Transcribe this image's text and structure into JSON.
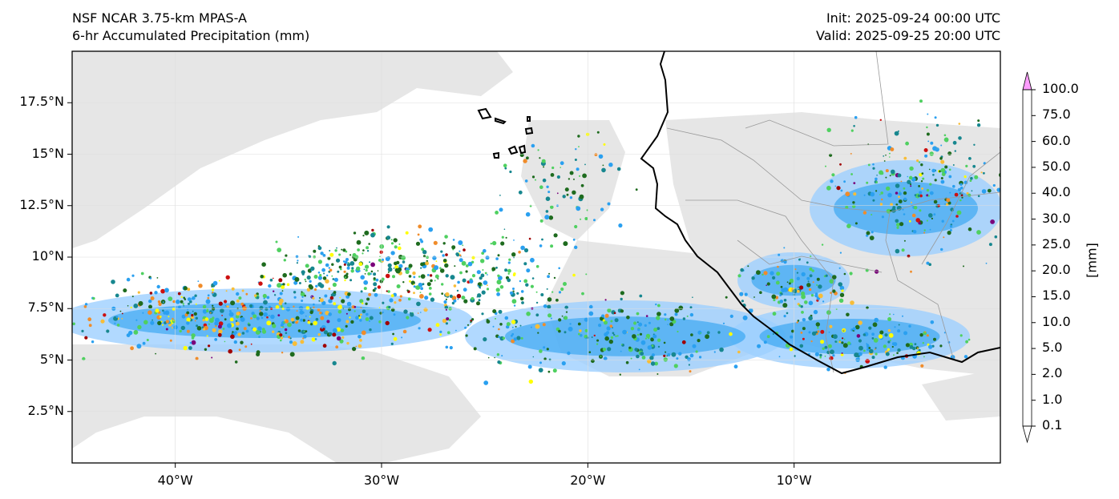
{
  "header": {
    "model": "NSF NCAR 3.75-km MPAS-A",
    "field": "6-hr Accumulated Precipitation (mm)",
    "init": "Init: 2025-09-24 00:00 UTC",
    "valid": "Valid: 2025-09-25 20:00 UTC"
  },
  "map": {
    "lon_range": [
      -45,
      0
    ],
    "lat_range": [
      0,
      20
    ],
    "lat_ticks": [
      {
        "value": 17.5,
        "label": "17.5°N"
      },
      {
        "value": 15,
        "label": "15°N"
      },
      {
        "value": 12.5,
        "label": "12.5°N"
      },
      {
        "value": 10,
        "label": "10°N"
      },
      {
        "value": 7.5,
        "label": "7.5°N"
      },
      {
        "value": 5,
        "label": "5°N"
      },
      {
        "value": 2.5,
        "label": "2.5°N"
      }
    ],
    "lon_ticks": [
      {
        "value": -40,
        "label": "40°W"
      },
      {
        "value": -30,
        "label": "30°W"
      },
      {
        "value": -20,
        "label": "20°W"
      },
      {
        "value": -10,
        "label": "10°W"
      }
    ],
    "background_color": "#ffffff",
    "cloud_color": "#e6e6e6",
    "coast_color": "#000000",
    "border_color": "#999999"
  },
  "colorbar": {
    "unit": "[mm]",
    "levels": [
      "0.1",
      "1.0",
      "2.0",
      "5.0",
      "10.0",
      "15.0",
      "20.0",
      "25.0",
      "30.0",
      "40.0",
      "50.0",
      "60.0",
      "75.0",
      "100.0"
    ],
    "colors": [
      "#e6e6e6",
      "#9ecfff",
      "#2aa0f0",
      "#17878f",
      "#1e6b1e",
      "#4fd060",
      "#ffff00",
      "#f7bd38",
      "#f08c2a",
      "#cc1010",
      "#a00000",
      "#7a007a",
      "#ff60ff"
    ],
    "under_color": "#ffffff",
    "over_color": "#ff9dff"
  }
}
